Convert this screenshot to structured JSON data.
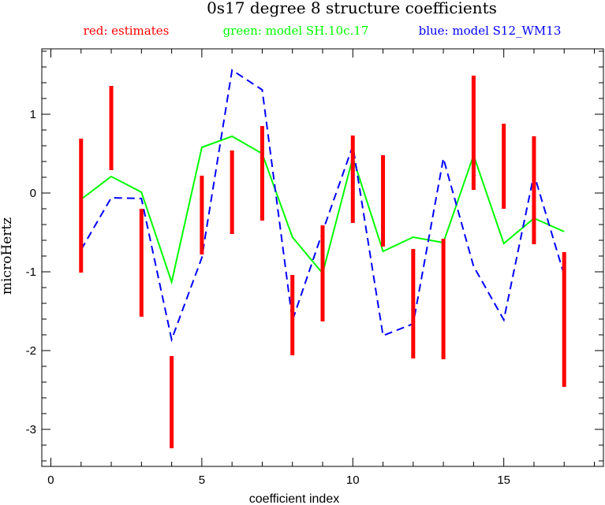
{
  "chart_data": {
    "type": "line",
    "title": "0s17 degree 8 structure coefficients",
    "xlabel": "coefficient index",
    "ylabel": "microHertz",
    "xlim": [
      -0.3,
      18.3
    ],
    "ylim": [
      -3.47,
      1.83
    ],
    "xticks": [
      0,
      5,
      10,
      15
    ],
    "yticks": [
      -3,
      -2,
      -1,
      0,
      1
    ],
    "legend": [
      {
        "label": "red: estimates",
        "color": "#ff0000"
      },
      {
        "label": "green: model SH.10c.17",
        "color": "#00ff00"
      },
      {
        "label": "blue: model S12_WM13",
        "color": "#0000ff"
      }
    ],
    "estimates": {
      "name": "estimates",
      "color": "#ff0000",
      "style": "error-bar",
      "x": [
        1,
        2,
        3,
        4,
        5,
        6,
        7,
        8,
        9,
        10,
        11,
        12,
        13,
        14,
        15,
        16,
        17
      ],
      "low": [
        -1.01,
        0.29,
        -1.57,
        -3.24,
        -0.78,
        -0.52,
        -0.35,
        -2.06,
        -1.63,
        -0.38,
        -0.68,
        -2.1,
        -2.11,
        0.04,
        -0.2,
        -0.65,
        -2.46
      ],
      "high": [
        0.69,
        1.36,
        -0.2,
        -2.07,
        0.22,
        0.54,
        0.85,
        -1.04,
        -0.41,
        0.73,
        0.48,
        -0.71,
        -0.58,
        1.49,
        0.88,
        0.72,
        -0.75
      ]
    },
    "series": [
      {
        "name": "model SH.10c.17",
        "color": "#00ff00",
        "style": "solid",
        "x": [
          1,
          2,
          3,
          4,
          5,
          6,
          7,
          8,
          9,
          10,
          11,
          12,
          13,
          14,
          15,
          16,
          17
        ],
        "values": [
          -0.08,
          0.21,
          0.01,
          -1.13,
          0.58,
          0.72,
          0.5,
          -0.56,
          -1.02,
          0.45,
          -0.74,
          -0.56,
          -0.63,
          0.48,
          -0.64,
          -0.32,
          -0.49
        ]
      },
      {
        "name": "model S12_WM13",
        "color": "#0000ff",
        "style": "dashed",
        "x": [
          1,
          2,
          3,
          4,
          5,
          6,
          7,
          8,
          9,
          10,
          11,
          12,
          13,
          14,
          15,
          16,
          17
        ],
        "values": [
          -0.72,
          -0.06,
          -0.07,
          -1.86,
          -0.82,
          1.56,
          1.31,
          -1.62,
          -0.49,
          0.6,
          -1.81,
          -1.66,
          0.44,
          -0.93,
          -1.61,
          0.24,
          -1.04
        ]
      }
    ]
  }
}
